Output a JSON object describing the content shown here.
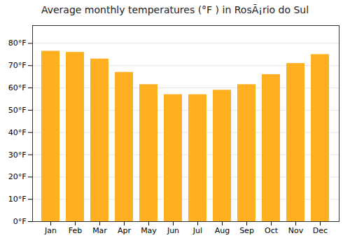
{
  "chart_data": {
    "type": "bar",
    "title": "Average monthly temperatures (°F ) in RosÃ¡rio do Sul",
    "categories": [
      "Jan",
      "Feb",
      "Mar",
      "Apr",
      "May",
      "Jun",
      "Jul",
      "Aug",
      "Sep",
      "Oct",
      "Nov",
      "Dec"
    ],
    "values": [
      76.5,
      76.0,
      73.0,
      67.0,
      61.5,
      57.0,
      57.0,
      59.0,
      61.5,
      66.0,
      71.0,
      75.0
    ],
    "color": "#FFB020",
    "ylim": [
      0,
      88
    ],
    "yticks": [
      {
        "value": 0,
        "label": "0°F"
      },
      {
        "value": 10,
        "label": "10°F"
      },
      {
        "value": 20,
        "label": "20°F"
      },
      {
        "value": 30,
        "label": "30°F"
      },
      {
        "value": 40,
        "label": "40°F"
      },
      {
        "value": 50,
        "label": "50°F"
      },
      {
        "value": 60,
        "label": "60°F"
      },
      {
        "value": 70,
        "label": "70°F"
      },
      {
        "value": 80,
        "label": "80°F"
      }
    ],
    "grid": true
  }
}
